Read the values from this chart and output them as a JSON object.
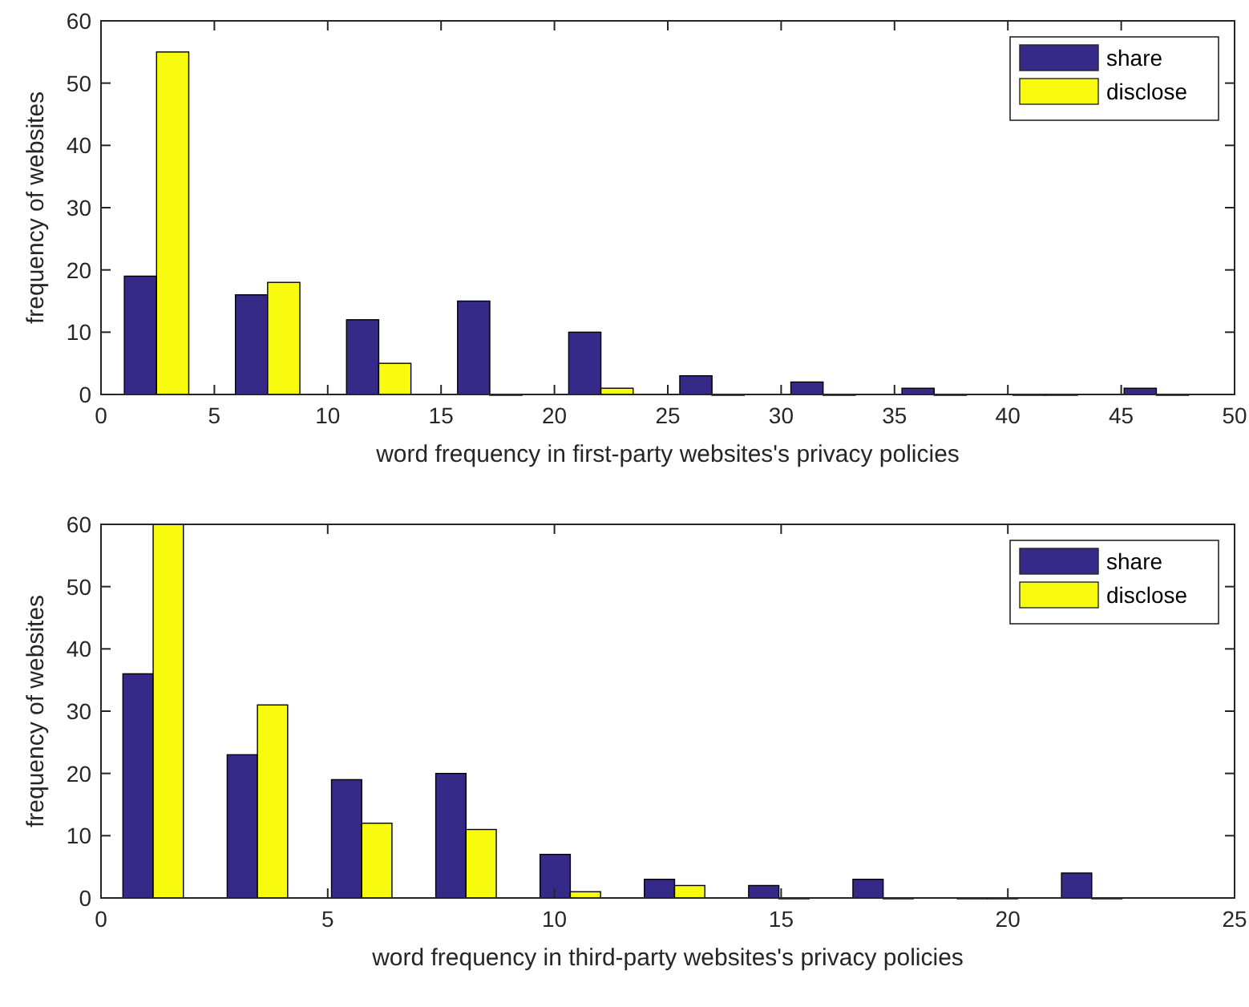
{
  "chart_data": [
    {
      "type": "bar",
      "xlabel": "word frequency in first-party websites's privacy policies",
      "ylabel": "frequency of websites",
      "x": [
        2.45,
        7.35,
        12.25,
        17.15,
        22.05,
        26.95,
        31.85,
        36.75,
        41.65,
        46.55
      ],
      "xlim": [
        0,
        50
      ],
      "xticks": [
        0,
        5,
        10,
        15,
        20,
        25,
        30,
        35,
        40,
        45,
        50
      ],
      "ylim": [
        0,
        60
      ],
      "yticks": [
        0,
        10,
        20,
        30,
        40,
        50,
        60
      ],
      "legend": "top right",
      "series": [
        {
          "name": "share",
          "color": "#352a87",
          "values": [
            19,
            16,
            12,
            15,
            10,
            3,
            2,
            1,
            0,
            1
          ]
        },
        {
          "name": "disclose",
          "color": "#f9fb0e",
          "values": [
            55,
            18,
            5,
            0,
            1,
            0,
            0,
            0,
            0,
            0
          ]
        }
      ]
    },
    {
      "type": "bar",
      "xlabel": "word frequency in third-party websites's privacy policies",
      "ylabel": "frequency of websites",
      "x": [
        1.15,
        3.45,
        5.75,
        8.05,
        10.35,
        12.65,
        14.95,
        17.25,
        19.55,
        21.85
      ],
      "xlim": [
        0,
        25
      ],
      "xticks": [
        0,
        5,
        10,
        15,
        20,
        25
      ],
      "ylim": [
        0,
        60
      ],
      "yticks": [
        0,
        10,
        20,
        30,
        40,
        50,
        60
      ],
      "legend": "top right",
      "series": [
        {
          "name": "share",
          "color": "#352a87",
          "values": [
            36,
            23,
            19,
            20,
            7,
            3,
            2,
            3,
            0,
            4
          ]
        },
        {
          "name": "disclose",
          "color": "#f9fb0e",
          "values": [
            60,
            31,
            12,
            11,
            1,
            2,
            0,
            0,
            0,
            0
          ]
        }
      ]
    }
  ]
}
